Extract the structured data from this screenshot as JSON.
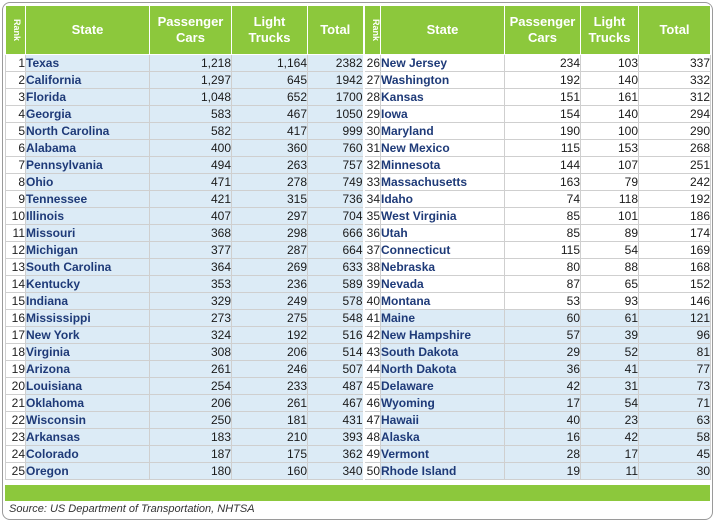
{
  "headers": {
    "rank": "Rank",
    "state": "State",
    "passenger_cars": "Passenger Cars",
    "light_trucks": "Light Trucks",
    "total": "Total"
  },
  "left_rows": [
    {
      "rank": "1",
      "state": "Texas",
      "cars": "1,218",
      "trucks": "1,164",
      "total": "2382"
    },
    {
      "rank": "2",
      "state": "California",
      "cars": "1,297",
      "trucks": "645",
      "total": "1942"
    },
    {
      "rank": "3",
      "state": "Florida",
      "cars": "1,048",
      "trucks": "652",
      "total": "1700"
    },
    {
      "rank": "4",
      "state": "Georgia",
      "cars": "583",
      "trucks": "467",
      "total": "1050"
    },
    {
      "rank": "5",
      "state": "North Carolina",
      "cars": "582",
      "trucks": "417",
      "total": "999"
    },
    {
      "rank": "6",
      "state": "Alabama",
      "cars": "400",
      "trucks": "360",
      "total": "760"
    },
    {
      "rank": "7",
      "state": "Pennsylvania",
      "cars": "494",
      "trucks": "263",
      "total": "757"
    },
    {
      "rank": "8",
      "state": "Ohio",
      "cars": "471",
      "trucks": "278",
      "total": "749"
    },
    {
      "rank": "9",
      "state": "Tennessee",
      "cars": "421",
      "trucks": "315",
      "total": "736"
    },
    {
      "rank": "10",
      "state": "Illinois",
      "cars": "407",
      "trucks": "297",
      "total": "704"
    },
    {
      "rank": "11",
      "state": "Missouri",
      "cars": "368",
      "trucks": "298",
      "total": "666"
    },
    {
      "rank": "12",
      "state": "Michigan",
      "cars": "377",
      "trucks": "287",
      "total": "664"
    },
    {
      "rank": "13",
      "state": "South Carolina",
      "cars": "364",
      "trucks": "269",
      "total": "633"
    },
    {
      "rank": "14",
      "state": "Kentucky",
      "cars": "353",
      "trucks": "236",
      "total": "589"
    },
    {
      "rank": "15",
      "state": "Indiana",
      "cars": "329",
      "trucks": "249",
      "total": "578"
    },
    {
      "rank": "16",
      "state": "Mississippi",
      "cars": "273",
      "trucks": "275",
      "total": "548"
    },
    {
      "rank": "17",
      "state": "New York",
      "cars": "324",
      "trucks": "192",
      "total": "516"
    },
    {
      "rank": "18",
      "state": "Virginia",
      "cars": "308",
      "trucks": "206",
      "total": "514"
    },
    {
      "rank": "19",
      "state": "Arizona",
      "cars": "261",
      "trucks": "246",
      "total": "507"
    },
    {
      "rank": "20",
      "state": "Louisiana",
      "cars": "254",
      "trucks": "233",
      "total": "487"
    },
    {
      "rank": "21",
      "state": "Oklahoma",
      "cars": "206",
      "trucks": "261",
      "total": "467"
    },
    {
      "rank": "22",
      "state": "Wisconsin",
      "cars": "250",
      "trucks": "181",
      "total": "431"
    },
    {
      "rank": "23",
      "state": "Arkansas",
      "cars": "183",
      "trucks": "210",
      "total": "393"
    },
    {
      "rank": "24",
      "state": "Colorado",
      "cars": "187",
      "trucks": "175",
      "total": "362"
    },
    {
      "rank": "25",
      "state": "Oregon",
      "cars": "180",
      "trucks": "160",
      "total": "340"
    }
  ],
  "right_rows": [
    {
      "rank": "26",
      "state": "New Jersey",
      "cars": "234",
      "trucks": "103",
      "total": "337"
    },
    {
      "rank": "27",
      "state": "Washington",
      "cars": "192",
      "trucks": "140",
      "total": "332"
    },
    {
      "rank": "28",
      "state": "Kansas",
      "cars": "151",
      "trucks": "161",
      "total": "312"
    },
    {
      "rank": "29",
      "state": "Iowa",
      "cars": "154",
      "trucks": "140",
      "total": "294"
    },
    {
      "rank": "30",
      "state": "Maryland",
      "cars": "190",
      "trucks": "100",
      "total": "290"
    },
    {
      "rank": "31",
      "state": "New Mexico",
      "cars": "115",
      "trucks": "153",
      "total": "268"
    },
    {
      "rank": "32",
      "state": "Minnesota",
      "cars": "144",
      "trucks": "107",
      "total": "251"
    },
    {
      "rank": "33",
      "state": "Massachusetts",
      "cars": "163",
      "trucks": "79",
      "total": "242"
    },
    {
      "rank": "34",
      "state": "Idaho",
      "cars": "74",
      "trucks": "118",
      "total": "192"
    },
    {
      "rank": "35",
      "state": "West Virginia",
      "cars": "85",
      "trucks": "101",
      "total": "186"
    },
    {
      "rank": "36",
      "state": "Utah",
      "cars": "85",
      "trucks": "89",
      "total": "174"
    },
    {
      "rank": "37",
      "state": "Connecticut",
      "cars": "115",
      "trucks": "54",
      "total": "169"
    },
    {
      "rank": "38",
      "state": "Nebraska",
      "cars": "80",
      "trucks": "88",
      "total": "168"
    },
    {
      "rank": "39",
      "state": "Nevada",
      "cars": "87",
      "trucks": "65",
      "total": "152"
    },
    {
      "rank": "40",
      "state": "Montana",
      "cars": "53",
      "trucks": "93",
      "total": "146"
    },
    {
      "rank": "41",
      "state": "Maine",
      "cars": "60",
      "trucks": "61",
      "total": "121"
    },
    {
      "rank": "42",
      "state": "New Hampshire",
      "cars": "57",
      "trucks": "39",
      "total": "96"
    },
    {
      "rank": "43",
      "state": "South Dakota",
      "cars": "29",
      "trucks": "52",
      "total": "81"
    },
    {
      "rank": "44",
      "state": "North Dakota",
      "cars": "36",
      "trucks": "41",
      "total": "77"
    },
    {
      "rank": "45",
      "state": "Delaware",
      "cars": "42",
      "trucks": "31",
      "total": "73"
    },
    {
      "rank": "46",
      "state": "Wyoming",
      "cars": "17",
      "trucks": "54",
      "total": "71"
    },
    {
      "rank": "47",
      "state": "Hawaii",
      "cars": "40",
      "trucks": "23",
      "total": "63"
    },
    {
      "rank": "48",
      "state": "Alaska",
      "cars": "16",
      "trucks": "42",
      "total": "58"
    },
    {
      "rank": "49",
      "state": "Vermont",
      "cars": "28",
      "trucks": "17",
      "total": "45"
    },
    {
      "rank": "50",
      "state": "Rhode Island",
      "cars": "19",
      "trucks": "11",
      "total": "30"
    }
  ],
  "source": "Source: US Department of Transportation, NHTSA",
  "colors": {
    "header_green": "#8cc83c",
    "band_blue": "#dcebf6",
    "state_text": "#1e3a78"
  }
}
